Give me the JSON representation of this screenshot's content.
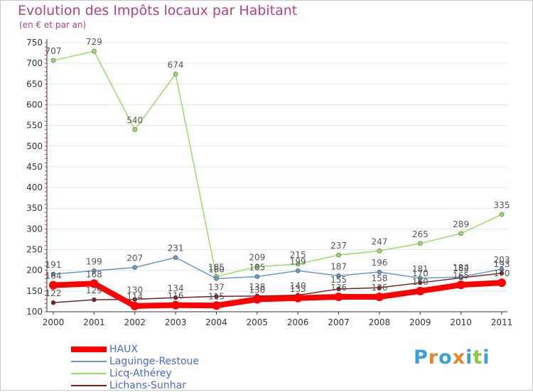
{
  "chart_data": {
    "type": "line",
    "title": "Evolution des Impôts locaux par Habitant",
    "subtitle": "(en € et par an)",
    "categories": [
      "2000",
      "2001",
      "2002",
      "2003",
      "2004",
      "2005",
      "2006",
      "2007",
      "2008",
      "2009",
      "2010",
      "2011"
    ],
    "ylim": [
      100,
      750
    ],
    "yticks": [
      100,
      150,
      200,
      250,
      300,
      350,
      400,
      450,
      500,
      550,
      600,
      650,
      700,
      750
    ],
    "series": [
      {
        "name": "HAUX",
        "color": "#ff0000",
        "values": [
          164,
          168,
          114,
          116,
          115,
          130,
          133,
          136,
          136,
          150,
          165,
          170
        ]
      },
      {
        "name": "Laguinge-Restoue",
        "color": "#6699cc",
        "values": [
          191,
          199,
          207,
          231,
          180,
          185,
          199,
          187,
          196,
          181,
          184,
          203
        ]
      },
      {
        "name": "Licq-Athérey",
        "color": "#99dd66",
        "values": [
          707,
          729,
          540,
          674,
          185,
          209,
          215,
          237,
          247,
          265,
          289,
          335
        ]
      },
      {
        "name": "Lichans-Sunhar",
        "color": "#772222",
        "values": [
          122,
          129,
          130,
          134,
          137,
          138,
          140,
          155,
          158,
          170,
          182,
          193
        ]
      }
    ]
  },
  "legend": {
    "items": [
      "HAUX",
      "Laguinge-Restoue",
      "Licq-Athérey",
      "Lichans-Sunhar"
    ]
  },
  "brand": {
    "letters": [
      "P",
      "r",
      "o",
      "x",
      "i",
      "t",
      "i"
    ],
    "colors": [
      "#3aa0d8",
      "#e8852a",
      "#3aa0d8",
      "#e8852a",
      "#3aa0d8",
      "#8cc63f",
      "#3aa0d8"
    ]
  }
}
